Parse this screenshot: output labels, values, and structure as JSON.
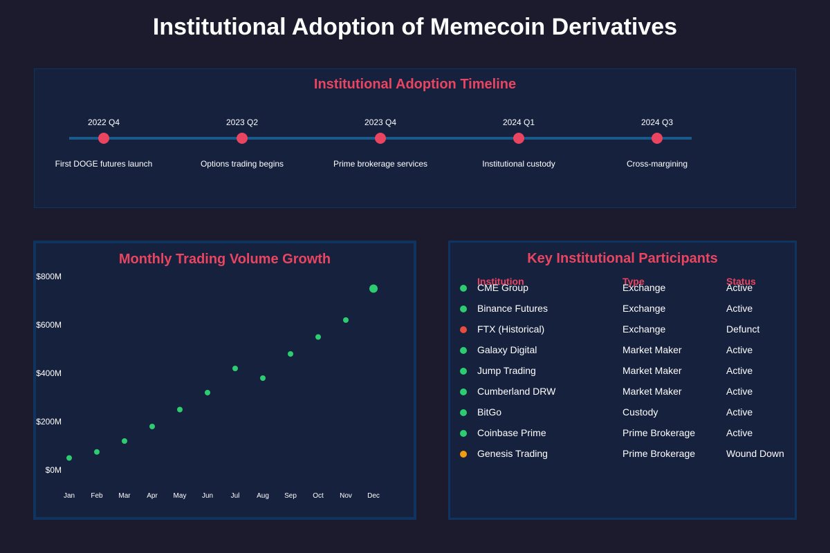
{
  "title": "Institutional Adoption of Memecoin Derivatives",
  "colors": {
    "background": "#1b1b2d",
    "panel": "#16213e",
    "panel_border": "#0f3460",
    "accent": "#e94560",
    "active": "#2ecc71",
    "defunct": "#e74c3c",
    "wound_down": "#f39c12",
    "timeline_line": "#1a5a8a"
  },
  "timeline": {
    "title": "Institutional Adoption Timeline",
    "events": [
      {
        "date": "2022 Q4",
        "label": "First DOGE futures launch"
      },
      {
        "date": "2023 Q2",
        "label": "Options trading begins"
      },
      {
        "date": "2023 Q4",
        "label": "Prime brokerage services"
      },
      {
        "date": "2024 Q1",
        "label": "Institutional custody"
      },
      {
        "date": "2024 Q3",
        "label": "Cross-margining"
      }
    ]
  },
  "chart_data": {
    "type": "scatter",
    "title": "Monthly Trading Volume Growth",
    "categories": [
      "Jan",
      "Feb",
      "Mar",
      "Apr",
      "May",
      "Jun",
      "Jul",
      "Aug",
      "Sep",
      "Oct",
      "Nov",
      "Dec"
    ],
    "values": [
      50,
      75,
      120,
      180,
      250,
      320,
      420,
      380,
      480,
      550,
      620,
      750
    ],
    "unit": "$M",
    "ylim": [
      0,
      800
    ],
    "yticks": [
      0,
      200,
      400,
      600,
      800
    ],
    "ytick_labels": [
      "$0M",
      "$200M",
      "$400M",
      "$600M",
      "$800M"
    ],
    "highlight_index": 11,
    "xlabel": "",
    "ylabel": ""
  },
  "participants": {
    "title": "Key Institutional Participants",
    "headers": {
      "institution": "Institution",
      "type": "Type",
      "status": "Status"
    },
    "rows": [
      {
        "institution": "CME Group",
        "type": "Exchange",
        "status": "Active",
        "status_color": "#2ecc71"
      },
      {
        "institution": "Binance Futures",
        "type": "Exchange",
        "status": "Active",
        "status_color": "#2ecc71"
      },
      {
        "institution": "FTX (Historical)",
        "type": "Exchange",
        "status": "Defunct",
        "status_color": "#e74c3c"
      },
      {
        "institution": "Galaxy Digital",
        "type": "Market Maker",
        "status": "Active",
        "status_color": "#2ecc71"
      },
      {
        "institution": "Jump Trading",
        "type": "Market Maker",
        "status": "Active",
        "status_color": "#2ecc71"
      },
      {
        "institution": "Cumberland DRW",
        "type": "Market Maker",
        "status": "Active",
        "status_color": "#2ecc71"
      },
      {
        "institution": "BitGo",
        "type": "Custody",
        "status": "Active",
        "status_color": "#2ecc71"
      },
      {
        "institution": "Coinbase Prime",
        "type": "Prime Brokerage",
        "status": "Active",
        "status_color": "#2ecc71"
      },
      {
        "institution": "Genesis Trading",
        "type": "Prime Brokerage",
        "status": "Wound Down",
        "status_color": "#f39c12"
      }
    ]
  }
}
